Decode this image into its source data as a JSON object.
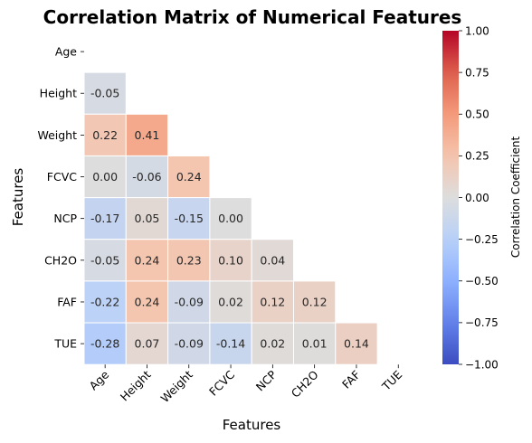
{
  "chart_data": {
    "type": "heatmap",
    "title": "Correlation Matrix of Numerical Features",
    "xlabel": "Features",
    "ylabel": "Features",
    "labels": [
      "Age",
      "Height",
      "Weight",
      "FCVC",
      "NCP",
      "CH2O",
      "FAF",
      "TUE"
    ],
    "mask": "upper-triangle-including-diagonal",
    "matrix": [
      [
        null,
        null,
        null,
        null,
        null,
        null,
        null,
        null
      ],
      [
        -0.05,
        null,
        null,
        null,
        null,
        null,
        null,
        null
      ],
      [
        0.22,
        0.41,
        null,
        null,
        null,
        null,
        null,
        null
      ],
      [
        0.0,
        -0.06,
        0.24,
        null,
        null,
        null,
        null,
        null
      ],
      [
        -0.17,
        0.05,
        -0.15,
        0.0,
        null,
        null,
        null,
        null
      ],
      [
        -0.05,
        0.24,
        0.23,
        0.1,
        0.04,
        null,
        null,
        null
      ],
      [
        -0.22,
        0.24,
        -0.09,
        0.02,
        0.12,
        0.12,
        null,
        null
      ],
      [
        -0.28,
        0.07,
        -0.09,
        -0.14,
        0.02,
        0.01,
        0.14,
        null
      ]
    ],
    "colormap": "coolwarm",
    "vmin": -1.0,
    "vmax": 1.0,
    "colorbar": {
      "label": "Correlation Coefficient",
      "ticks": [
        1.0,
        0.75,
        0.5,
        0.25,
        0.0,
        -0.25,
        -0.5,
        -0.75,
        -1.0
      ],
      "tick_labels": [
        "1.00",
        "0.75",
        "0.50",
        "0.25",
        "0.00",
        "−0.25",
        "−0.50",
        "−0.75",
        "−1.00"
      ]
    }
  }
}
